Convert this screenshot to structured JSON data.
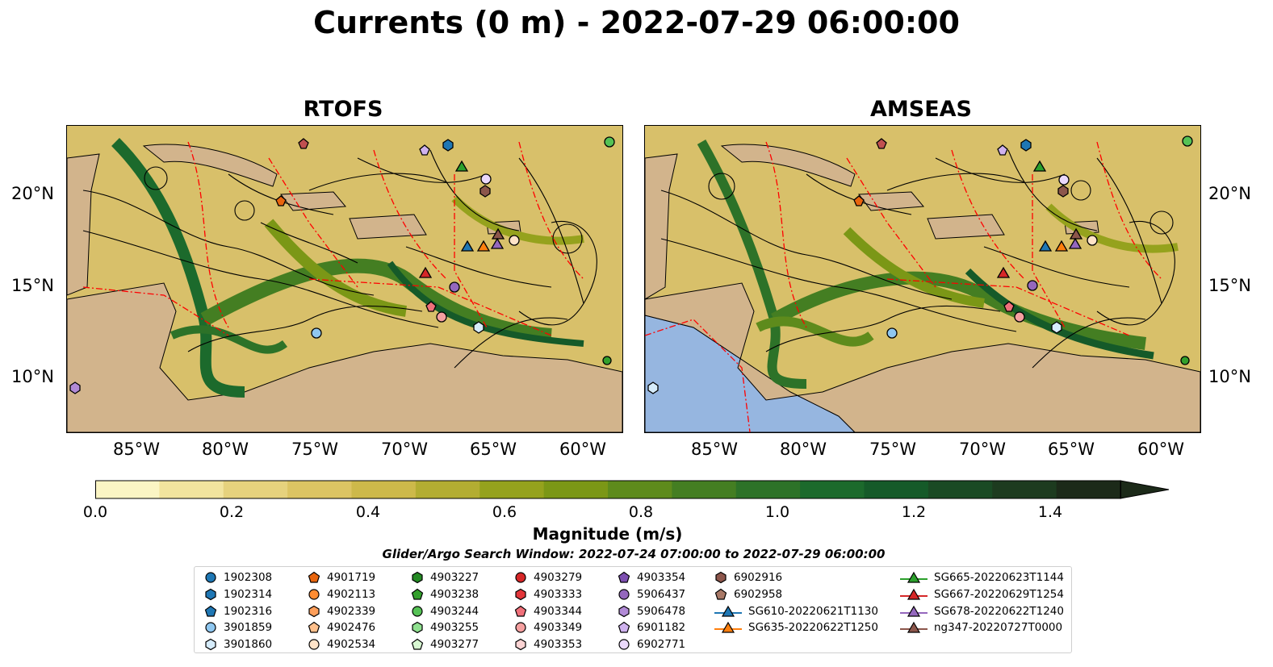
{
  "figure": {
    "title": "Currents (0 m) - 2022-07-29 06:00:00",
    "panels": [
      {
        "title": "RTOFS"
      },
      {
        "title": "AMSEAS"
      }
    ],
    "lon_ticks": [
      "85°W",
      "80°W",
      "75°W",
      "70°W",
      "65°W",
      "60°W"
    ],
    "lat_ticks": [
      "20°N",
      "15°N",
      "10°N"
    ],
    "colorbar": {
      "label": "Magnitude (m/s)",
      "ticks": [
        "0.0",
        "0.2",
        "0.4",
        "0.6",
        "0.8",
        "1.0",
        "1.2",
        "1.4"
      ],
      "range": [
        0,
        1.5
      ],
      "extend": "max",
      "colormap": [
        "#fbf5c4",
        "#f2e49e",
        "#e6d27d",
        "#dcc463",
        "#cdb94a",
        "#b3ad32",
        "#95a21d",
        "#7b9716",
        "#5e8b1c",
        "#447e22",
        "#2d7228",
        "#1c6a2c",
        "#155a29",
        "#1a4a24",
        "#1d3b1f",
        "#1c2a19"
      ]
    },
    "search_window": "Glider/Argo Search Window: 2022-07-24 07:00:00 to 2022-07-29 06:00:00",
    "colors": {
      "land": "#d2b48c",
      "water": "#96b6e0",
      "eez": "#ff0000"
    }
  },
  "legend": {
    "columns": [
      [
        {
          "label": "1902308",
          "marker": "circle",
          "color": "#1f77b4"
        },
        {
          "label": "1902314",
          "marker": "hexagon",
          "color": "#1f77b4"
        },
        {
          "label": "1902316",
          "marker": "pentagon",
          "color": "#1f77b4"
        },
        {
          "label": "3901859",
          "marker": "circle",
          "color": "#8fc7f0"
        },
        {
          "label": "3901860",
          "marker": "hexagon",
          "color": "#d6ecfb"
        }
      ],
      [
        {
          "label": "4901719",
          "marker": "pentagon",
          "color": "#e8650e"
        },
        {
          "label": "4902113",
          "marker": "circle",
          "color": "#ff8c32"
        },
        {
          "label": "4902339",
          "marker": "hexagon",
          "color": "#ff9f5a"
        },
        {
          "label": "4902476",
          "marker": "pentagon",
          "color": "#ffc08c"
        },
        {
          "label": "4902534",
          "marker": "circle",
          "color": "#ffe3c8"
        }
      ],
      [
        {
          "label": "4903227",
          "marker": "hexagon",
          "color": "#248a24"
        },
        {
          "label": "4903238",
          "marker": "pentagon",
          "color": "#33a02c"
        },
        {
          "label": "4903244",
          "marker": "circle",
          "color": "#55c255"
        },
        {
          "label": "4903255",
          "marker": "hexagon",
          "color": "#8fe08f"
        },
        {
          "label": "4903277",
          "marker": "pentagon",
          "color": "#d8f8d2"
        }
      ],
      [
        {
          "label": "4903279",
          "marker": "circle",
          "color": "#d62728"
        },
        {
          "label": "4903333",
          "marker": "hexagon",
          "color": "#e3363a"
        },
        {
          "label": "4903344",
          "marker": "pentagon",
          "color": "#f0707a"
        },
        {
          "label": "4903349",
          "marker": "circle",
          "color": "#f5a0a0"
        },
        {
          "label": "4903353",
          "marker": "hexagon",
          "color": "#fcd4d4"
        }
      ],
      [
        {
          "label": "4903354",
          "marker": "pentagon",
          "color": "#7d4fb0"
        },
        {
          "label": "5906437",
          "marker": "circle",
          "color": "#9467bd"
        },
        {
          "label": "5906478",
          "marker": "hexagon",
          "color": "#b18ad6"
        },
        {
          "label": "6901182",
          "marker": "pentagon",
          "color": "#cfb2ee"
        },
        {
          "label": "6902771",
          "marker": "circle",
          "color": "#ead8fb"
        }
      ],
      [
        {
          "label": "6902916",
          "marker": "hexagon",
          "color": "#8c564b"
        },
        {
          "label": "6902958",
          "marker": "pentagon",
          "color": "#a87866"
        },
        {
          "label": "SG610-20220621T1130",
          "marker": "triangle",
          "color": "#1f77b4"
        },
        {
          "label": "SG635-20220622T1250",
          "marker": "triangle",
          "color": "#ff7f0e"
        }
      ],
      [
        {
          "label": "SG665-20220623T1144",
          "marker": "triangle",
          "color": "#2ca02c"
        },
        {
          "label": "SG667-20220629T1254",
          "marker": "triangle",
          "color": "#d62728"
        },
        {
          "label": "SG678-20220622T1240",
          "marker": "triangle",
          "color": "#9467bd"
        },
        {
          "label": "ng347-20220727T0000",
          "marker": "triangle",
          "color": "#8c564b"
        }
      ]
    ]
  }
}
